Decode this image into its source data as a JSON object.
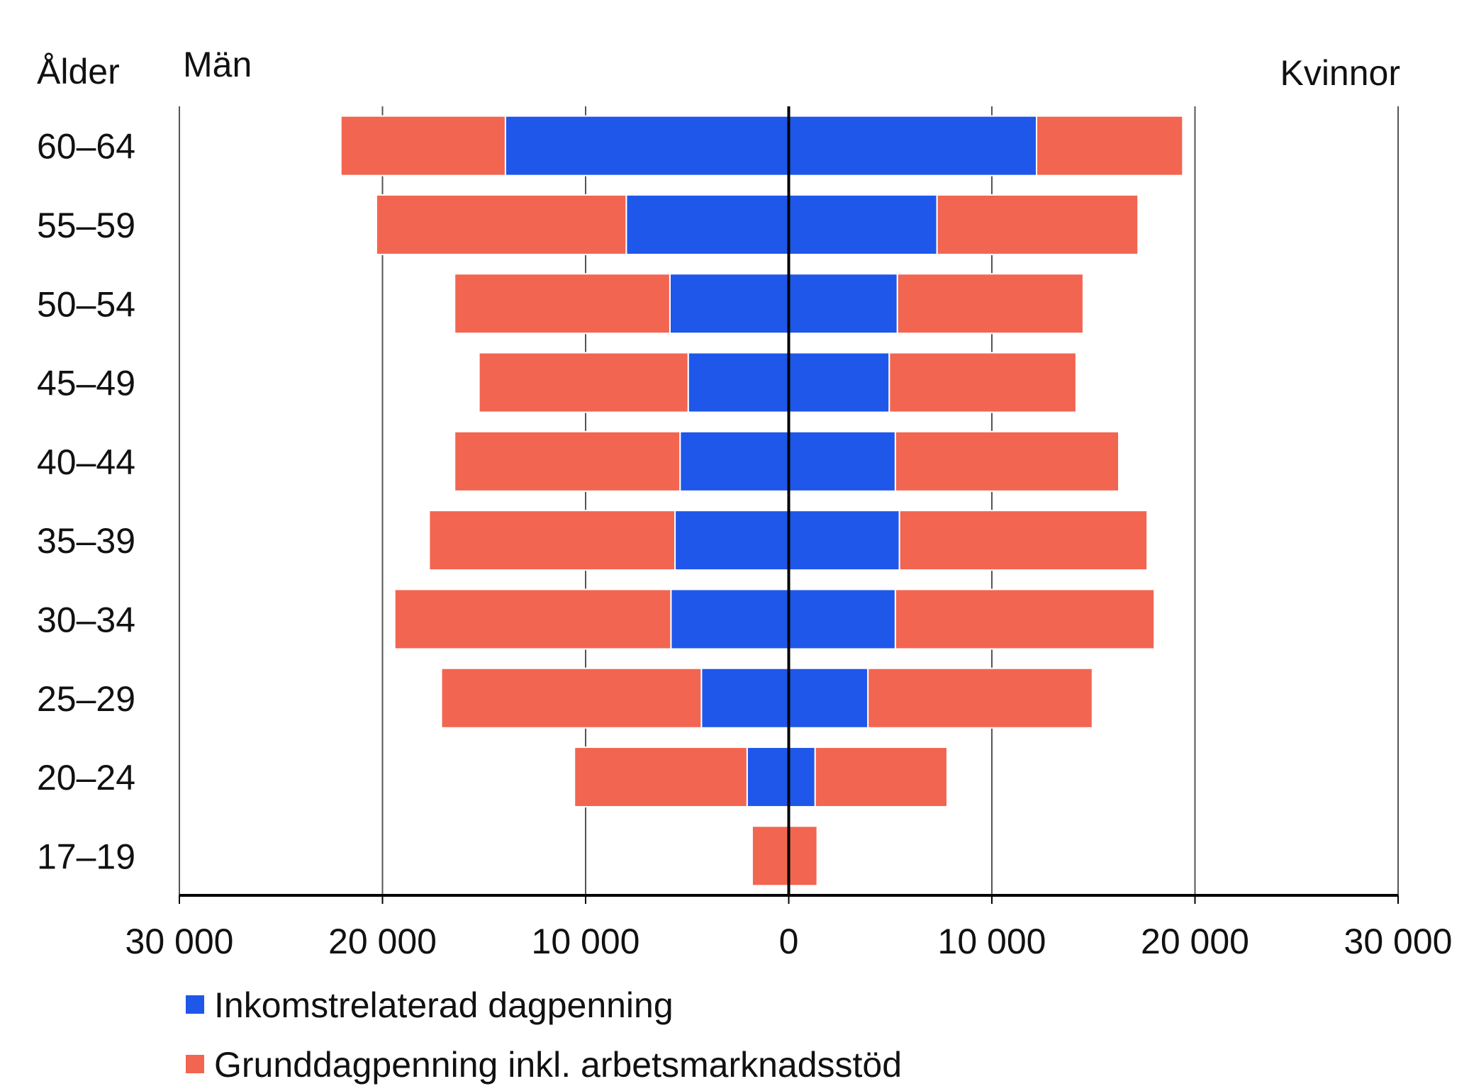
{
  "chart_data": {
    "type": "bar",
    "orientation": "horizontal-pyramid",
    "title": "",
    "category_axis_label": "Ålder",
    "left_group_label": "Män",
    "right_group_label": "Kvinnor",
    "categories": [
      "60–64",
      "55–59",
      "50–54",
      "45–49",
      "40–44",
      "35–39",
      "30–34",
      "25–29",
      "20–24",
      "17–19"
    ],
    "series": [
      {
        "name": "Inkomstrelaterad dagpenning",
        "color": "#1f57ea",
        "men": [
          13950,
          8000,
          5850,
          4950,
          5350,
          5600,
          5800,
          4300,
          2050,
          0
        ],
        "women": [
          12200,
          7300,
          5350,
          4950,
          5250,
          5450,
          5250,
          3900,
          1300,
          0
        ]
      },
      {
        "name": "Grunddagpenning inkl. arbetsmarknadsstöd",
        "color": "#f26550",
        "men": [
          8100,
          12300,
          10600,
          10300,
          11100,
          12100,
          13600,
          12800,
          8500,
          1800
        ],
        "women": [
          7200,
          9900,
          9150,
          9200,
          11000,
          12200,
          12750,
          11050,
          6500,
          1400
        ]
      }
    ],
    "xlim": [
      -30000,
      30000
    ],
    "x_ticks": [
      -30000,
      -20000,
      -10000,
      0,
      10000,
      20000,
      30000
    ],
    "x_tick_labels": [
      "30 000",
      "20 000",
      "10 000",
      "0",
      "10 000",
      "20 000",
      "30 000"
    ],
    "grid": true,
    "legend_position": "bottom-left"
  }
}
